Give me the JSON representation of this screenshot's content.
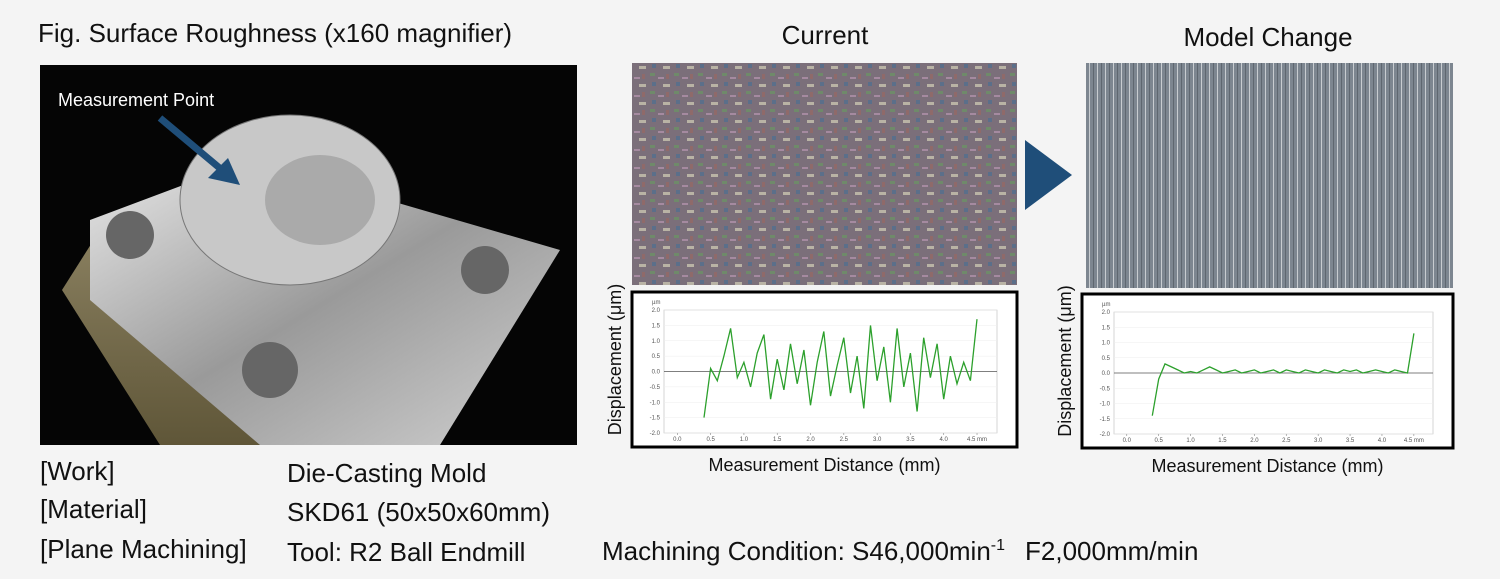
{
  "figure": {
    "title": "Fig. Surface Roughness (x160 magnifier)",
    "photo_label": "Measurement Point",
    "panel_titles": [
      "Current",
      "Model Change"
    ],
    "specs": [
      [
        "[Work]",
        "Die-Casting Mold"
      ],
      [
        "[Material]",
        "SKD61 (50x50x60mm)"
      ],
      [
        "[Plane Machining]",
        "Tool: R2 Ball Endmill"
      ]
    ],
    "condition": {
      "text": "Machining Condition: S46,000min",
      "superscript": "-1",
      "feed": "F2,000mm/min"
    }
  },
  "chart_data": [
    {
      "type": "line",
      "ylabel": "Displacement (μm)",
      "xlabel": "Measurement Distance (mm)",
      "y_unit_label": "µm",
      "xlim": [
        -0.2,
        4.8
      ],
      "ylim": [
        -2,
        2
      ],
      "xticks": [
        {
          "value": 0,
          "label": "0.0"
        },
        0.5,
        {
          "value": 1,
          "label": "1.0"
        },
        1.5,
        {
          "value": 2,
          "label": "2.0"
        },
        2.5,
        {
          "value": 3,
          "label": "3.0"
        },
        3.5,
        {
          "value": 4,
          "label": "4.0"
        },
        {
          "value": 4.5,
          "label": "4.5 mm"
        }
      ],
      "yticks": [
        {
          "value": -2,
          "label": "-2.0"
        },
        -1.5,
        {
          "value": -1,
          "label": "-1.0"
        },
        -0.5,
        {
          "value": 0,
          "label": "0.0"
        },
        0.5,
        {
          "value": 1,
          "label": "1.0"
        },
        1.5,
        {
          "value": 2,
          "label": "2.0"
        }
      ],
      "x": [
        0.4,
        0.5,
        0.6,
        0.7,
        0.8,
        0.9,
        1.0,
        1.1,
        1.2,
        1.3,
        1.4,
        1.5,
        1.6,
        1.7,
        1.8,
        1.9,
        2.0,
        2.1,
        2.2,
        2.3,
        2.4,
        2.5,
        2.6,
        2.7,
        2.8,
        2.9,
        3.0,
        3.1,
        3.2,
        3.3,
        3.4,
        3.5,
        3.6,
        3.7,
        3.8,
        3.9,
        4.0,
        4.1,
        4.2,
        4.3,
        4.4,
        4.5
      ],
      "series": [
        {
          "color": "#2ca02c",
          "values": [
            -1.5,
            0.1,
            -0.3,
            0.5,
            1.4,
            -0.2,
            0.3,
            -0.5,
            0.6,
            1.2,
            -0.9,
            0.4,
            -0.6,
            0.9,
            -0.4,
            0.7,
            -1.1,
            0.3,
            1.3,
            -0.8,
            0.2,
            1.1,
            -0.7,
            0.5,
            -1.2,
            1.5,
            -0.3,
            0.8,
            -1.0,
            1.4,
            -0.5,
            0.6,
            -1.3,
            1.1,
            -0.2,
            0.9,
            -0.9,
            0.5,
            -0.4,
            0.3,
            -0.3,
            1.7
          ]
        }
      ]
    },
    {
      "type": "line",
      "ylabel": "Displacement (μm)",
      "xlabel": "Measurement Distance (mm)",
      "y_unit_label": "µm",
      "xlim": [
        -0.2,
        4.8
      ],
      "ylim": [
        -2,
        2
      ],
      "xticks": [
        {
          "value": 0,
          "label": "0.0"
        },
        0.5,
        {
          "value": 1,
          "label": "1.0"
        },
        1.5,
        {
          "value": 2,
          "label": "2.0"
        },
        2.5,
        {
          "value": 3,
          "label": "3.0"
        },
        3.5,
        {
          "value": 4,
          "label": "4.0"
        },
        {
          "value": 4.5,
          "label": "4.5 mm"
        }
      ],
      "yticks": [
        {
          "value": -2,
          "label": "-2.0"
        },
        -1.5,
        {
          "value": -1,
          "label": "-1.0"
        },
        -0.5,
        {
          "value": 0,
          "label": "0.0"
        },
        0.5,
        {
          "value": 1,
          "label": "1.0"
        },
        1.5,
        {
          "value": 2,
          "label": "2.0"
        }
      ],
      "x": [
        0.4,
        0.5,
        0.6,
        0.7,
        0.8,
        0.9,
        1.0,
        1.1,
        1.2,
        1.3,
        1.4,
        1.5,
        1.6,
        1.7,
        1.8,
        1.9,
        2.0,
        2.1,
        2.2,
        2.3,
        2.4,
        2.5,
        2.6,
        2.7,
        2.8,
        2.9,
        3.0,
        3.1,
        3.2,
        3.3,
        3.4,
        3.5,
        3.6,
        3.7,
        3.8,
        3.9,
        4.0,
        4.1,
        4.2,
        4.3,
        4.4,
        4.5
      ],
      "series": [
        {
          "color": "#2ca02c",
          "values": [
            -1.4,
            -0.2,
            0.3,
            0.2,
            0.1,
            0.0,
            0.05,
            0.0,
            0.1,
            0.2,
            0.1,
            0.0,
            0.05,
            0.1,
            0.0,
            0.05,
            0.1,
            0.0,
            0.05,
            0.1,
            0.0,
            0.1,
            0.05,
            0.0,
            0.1,
            0.05,
            0.0,
            0.1,
            0.05,
            0.0,
            0.1,
            0.05,
            0.1,
            0.0,
            0.05,
            0.1,
            0.05,
            0.0,
            0.1,
            0.05,
            0.0,
            1.3
          ]
        }
      ]
    }
  ]
}
